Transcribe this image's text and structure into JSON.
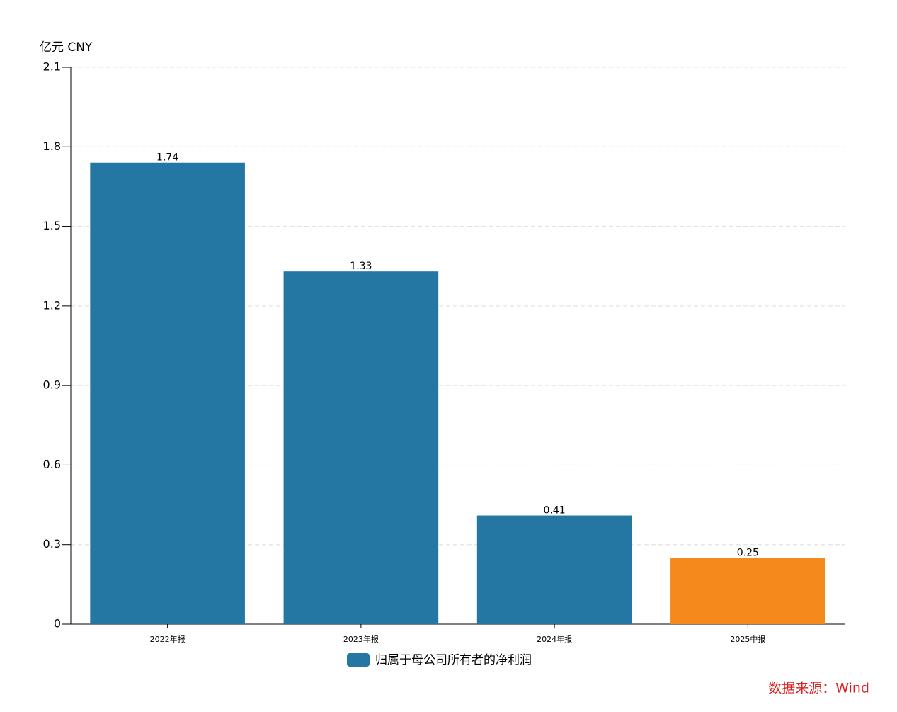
{
  "chart_data": {
    "type": "bar",
    "y_axis_label": "亿元 CNY",
    "source": "数据来源：Wind",
    "categories": [
      "2022年报",
      "2023年报",
      "2024年报",
      "2025中报"
    ],
    "series": [
      {
        "name": "归属于母公司所有者的净利润",
        "color": "#2577a3",
        "colors": [
          "#2577a3",
          "#2577a3",
          "#2577a3",
          "#f5891c"
        ],
        "values": [
          1.74,
          1.33,
          0.41,
          0.25
        ]
      }
    ],
    "ylim": [
      0,
      2.1
    ],
    "yticks": [
      0,
      0.3,
      0.6,
      0.9,
      1.2,
      1.5,
      1.8,
      2.1
    ],
    "grid": true
  }
}
